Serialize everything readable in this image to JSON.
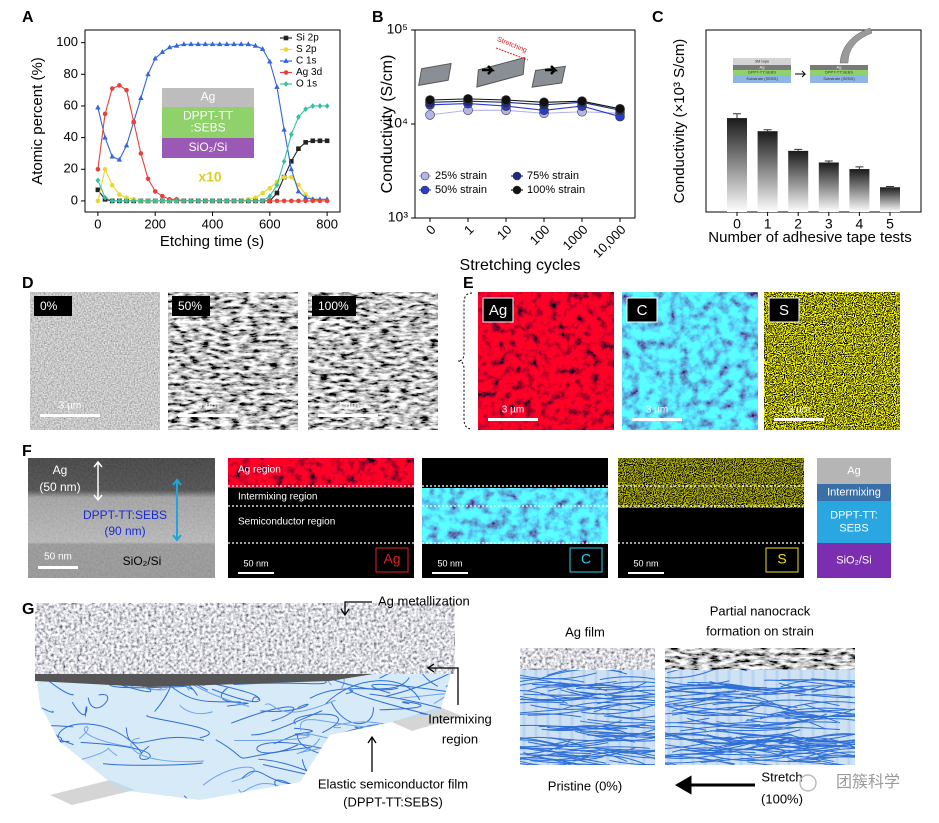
{
  "chart_data": [
    {
      "type": "line",
      "xlabel": "Etching time (s)",
      "ylabel": "Atomic percent (%)",
      "x": [
        0,
        25,
        50,
        75,
        100,
        125,
        150,
        175,
        200,
        225,
        250,
        275,
        300,
        325,
        350,
        375,
        400,
        425,
        450,
        475,
        500,
        525,
        550,
        575,
        600,
        625,
        650,
        675,
        700,
        725,
        750,
        775,
        800
      ],
      "xlim": [
        -45,
        845
      ],
      "xticks": [
        0,
        200,
        400,
        600,
        800
      ],
      "ylim": [
        -7,
        108
      ],
      "yticks": [
        0,
        20,
        40,
        60,
        80,
        100
      ],
      "legend": "upper right",
      "series": [
        {
          "name": "Si 2p",
          "color": "#222222",
          "marker": "square",
          "values": [
            7,
            1,
            0,
            0,
            0,
            0,
            0,
            0,
            0,
            0,
            0,
            0,
            0,
            0,
            0,
            0,
            0,
            0,
            0,
            0,
            0,
            0,
            0,
            0,
            0,
            5,
            15,
            25,
            33,
            37,
            38,
            38,
            38
          ]
        },
        {
          "name": "S 2p",
          "color": "#e8d832",
          "marker": "circle",
          "values": [
            0,
            20,
            10,
            4,
            2,
            1,
            0,
            0,
            0,
            0,
            0,
            0,
            0,
            0,
            0,
            0,
            0,
            0,
            0,
            0,
            0,
            1,
            2,
            5,
            8,
            12,
            15,
            15,
            10,
            4,
            1,
            0,
            0
          ]
        },
        {
          "name": "C 1s",
          "color": "#3366dd",
          "marker": "triangle",
          "values": [
            59,
            40,
            28,
            26,
            35,
            50,
            65,
            80,
            90,
            94,
            97,
            98,
            99,
            99,
            99,
            99,
            99,
            99,
            99,
            99,
            99,
            99,
            98,
            96,
            88,
            72,
            45,
            20,
            6,
            2,
            1,
            1,
            1
          ]
        },
        {
          "name": "Ag 3d",
          "color": "#e8403a",
          "marker": "circle",
          "values": [
            20,
            55,
            71,
            73,
            70,
            50,
            30,
            14,
            6,
            3,
            1,
            1,
            0,
            0,
            0,
            0,
            0,
            0,
            0,
            0,
            0,
            0,
            0,
            0,
            0,
            0,
            0,
            0,
            0,
            0,
            0,
            0,
            0
          ]
        },
        {
          "name": "O 1s",
          "color": "#36c0a0",
          "marker": "diamond",
          "values": [
            13,
            2,
            0,
            0,
            0,
            0,
            0,
            0,
            0,
            0,
            0,
            0,
            0,
            0,
            0,
            0,
            0,
            0,
            0,
            0,
            0,
            0,
            0,
            0,
            3,
            10,
            25,
            42,
            53,
            58,
            60,
            60,
            60
          ]
        }
      ],
      "inset": {
        "layers": [
          [
            "Ag"
          ],
          [
            "DPPT-TT",
            ":SEBS"
          ],
          [
            "SiO₂/Si"
          ]
        ],
        "colors": [
          "#bdbdbd",
          "#8fd16a",
          "#9b59b6"
        ]
      },
      "annotation": "x10"
    },
    {
      "type": "line",
      "log_y": true,
      "xlabel": "Stretching cycles",
      "ylabel": "Conductivity (S/cm)",
      "categories": [
        "0",
        "1",
        "10",
        "100",
        "1000",
        "10,000"
      ],
      "ylim": [
        1000,
        100000
      ],
      "yticks": [
        {
          "value": 1000,
          "label": "10³"
        },
        {
          "value": 10000,
          "label": "10⁴"
        },
        {
          "value": 100000,
          "label": "10⁵"
        }
      ],
      "legend": "lower center",
      "legend_columns": 2,
      "series": [
        {
          "name": "25% strain",
          "color": "#b4b4ec",
          "marker": "circle",
          "values": [
            12500,
            14000,
            14000,
            13000,
            13500,
            13000
          ]
        },
        {
          "name": "50% strain",
          "color": "#2a3bd0",
          "marker": "circle",
          "values": [
            16000,
            16500,
            15500,
            14000,
            15500,
            12000
          ]
        },
        {
          "name": "75% strain",
          "color": "#1a2a8a",
          "marker": "circle",
          "values": [
            17000,
            17500,
            17000,
            16000,
            17000,
            14000
          ]
        },
        {
          "name": "100% strain",
          "color": "#111111",
          "marker": "circle",
          "values": [
            18000,
            18500,
            18000,
            17000,
            17500,
            14500
          ]
        }
      ],
      "inset": {
        "label": "Stretching"
      }
    },
    {
      "type": "bar",
      "xlabel": "Number of adhesive tape tests",
      "ylabel": "Conductivity (×10³ S/cm)",
      "categories": [
        "0",
        "1",
        "2",
        "3",
        "4",
        "5"
      ],
      "values": [
        12.9,
        11.1,
        8.4,
        6.8,
        5.9,
        3.4
      ],
      "errors": [
        0.6,
        0.2,
        0.2,
        0.2,
        0.3,
        0.1
      ],
      "ylim": [
        0,
        25
      ],
      "color": "#1a1a1a",
      "inset": {
        "layers": [
          "3M tape",
          "Ag",
          "DPPT-TT:SEBS",
          "Substrate (SEBS)"
        ]
      }
    }
  ],
  "panel_labels": [
    "A",
    "B",
    "C",
    "D",
    "E",
    "F",
    "G"
  ],
  "D": {
    "labels": [
      "0%",
      "50%",
      "100%"
    ],
    "scale_bar": "3 µm"
  },
  "E": {
    "labels": [
      "Ag",
      "C",
      "S"
    ],
    "scale_bar": "3 µm"
  },
  "F": {
    "ag": "Ag",
    "ag_thickness": "(50 nm)",
    "dppt": "DPPT-TT:SEBS",
    "dppt_thickness": "(90 nm)",
    "tem_scale": "50 nm",
    "substrate": "SiO₂/Si",
    "regions": [
      "Ag region",
      "Intermixing region",
      "Semiconductor region"
    ],
    "maps": [
      "Ag",
      "C",
      "S"
    ],
    "map_scale": "50 nm",
    "layers": [
      [
        "Ag"
      ],
      [
        "Intermixing"
      ],
      [
        "DPPT-TT:",
        "SEBS"
      ],
      [
        "SiO₂/Si"
      ]
    ]
  },
  "G": {
    "ag_metallization": "Ag metallization",
    "intermixing": [
      "Intermixing",
      "region"
    ],
    "semiconductor": [
      "Elastic semiconductor film",
      "(DPPT-TT:SEBS)"
    ],
    "ag_film": "Ag film",
    "nanocrack": [
      "Partial nanocrack",
      "formation on strain"
    ],
    "pristine": "Pristine (0%)",
    "stretch": [
      "Stretch",
      "(100%)"
    ],
    "watermark": "团簇科学"
  }
}
